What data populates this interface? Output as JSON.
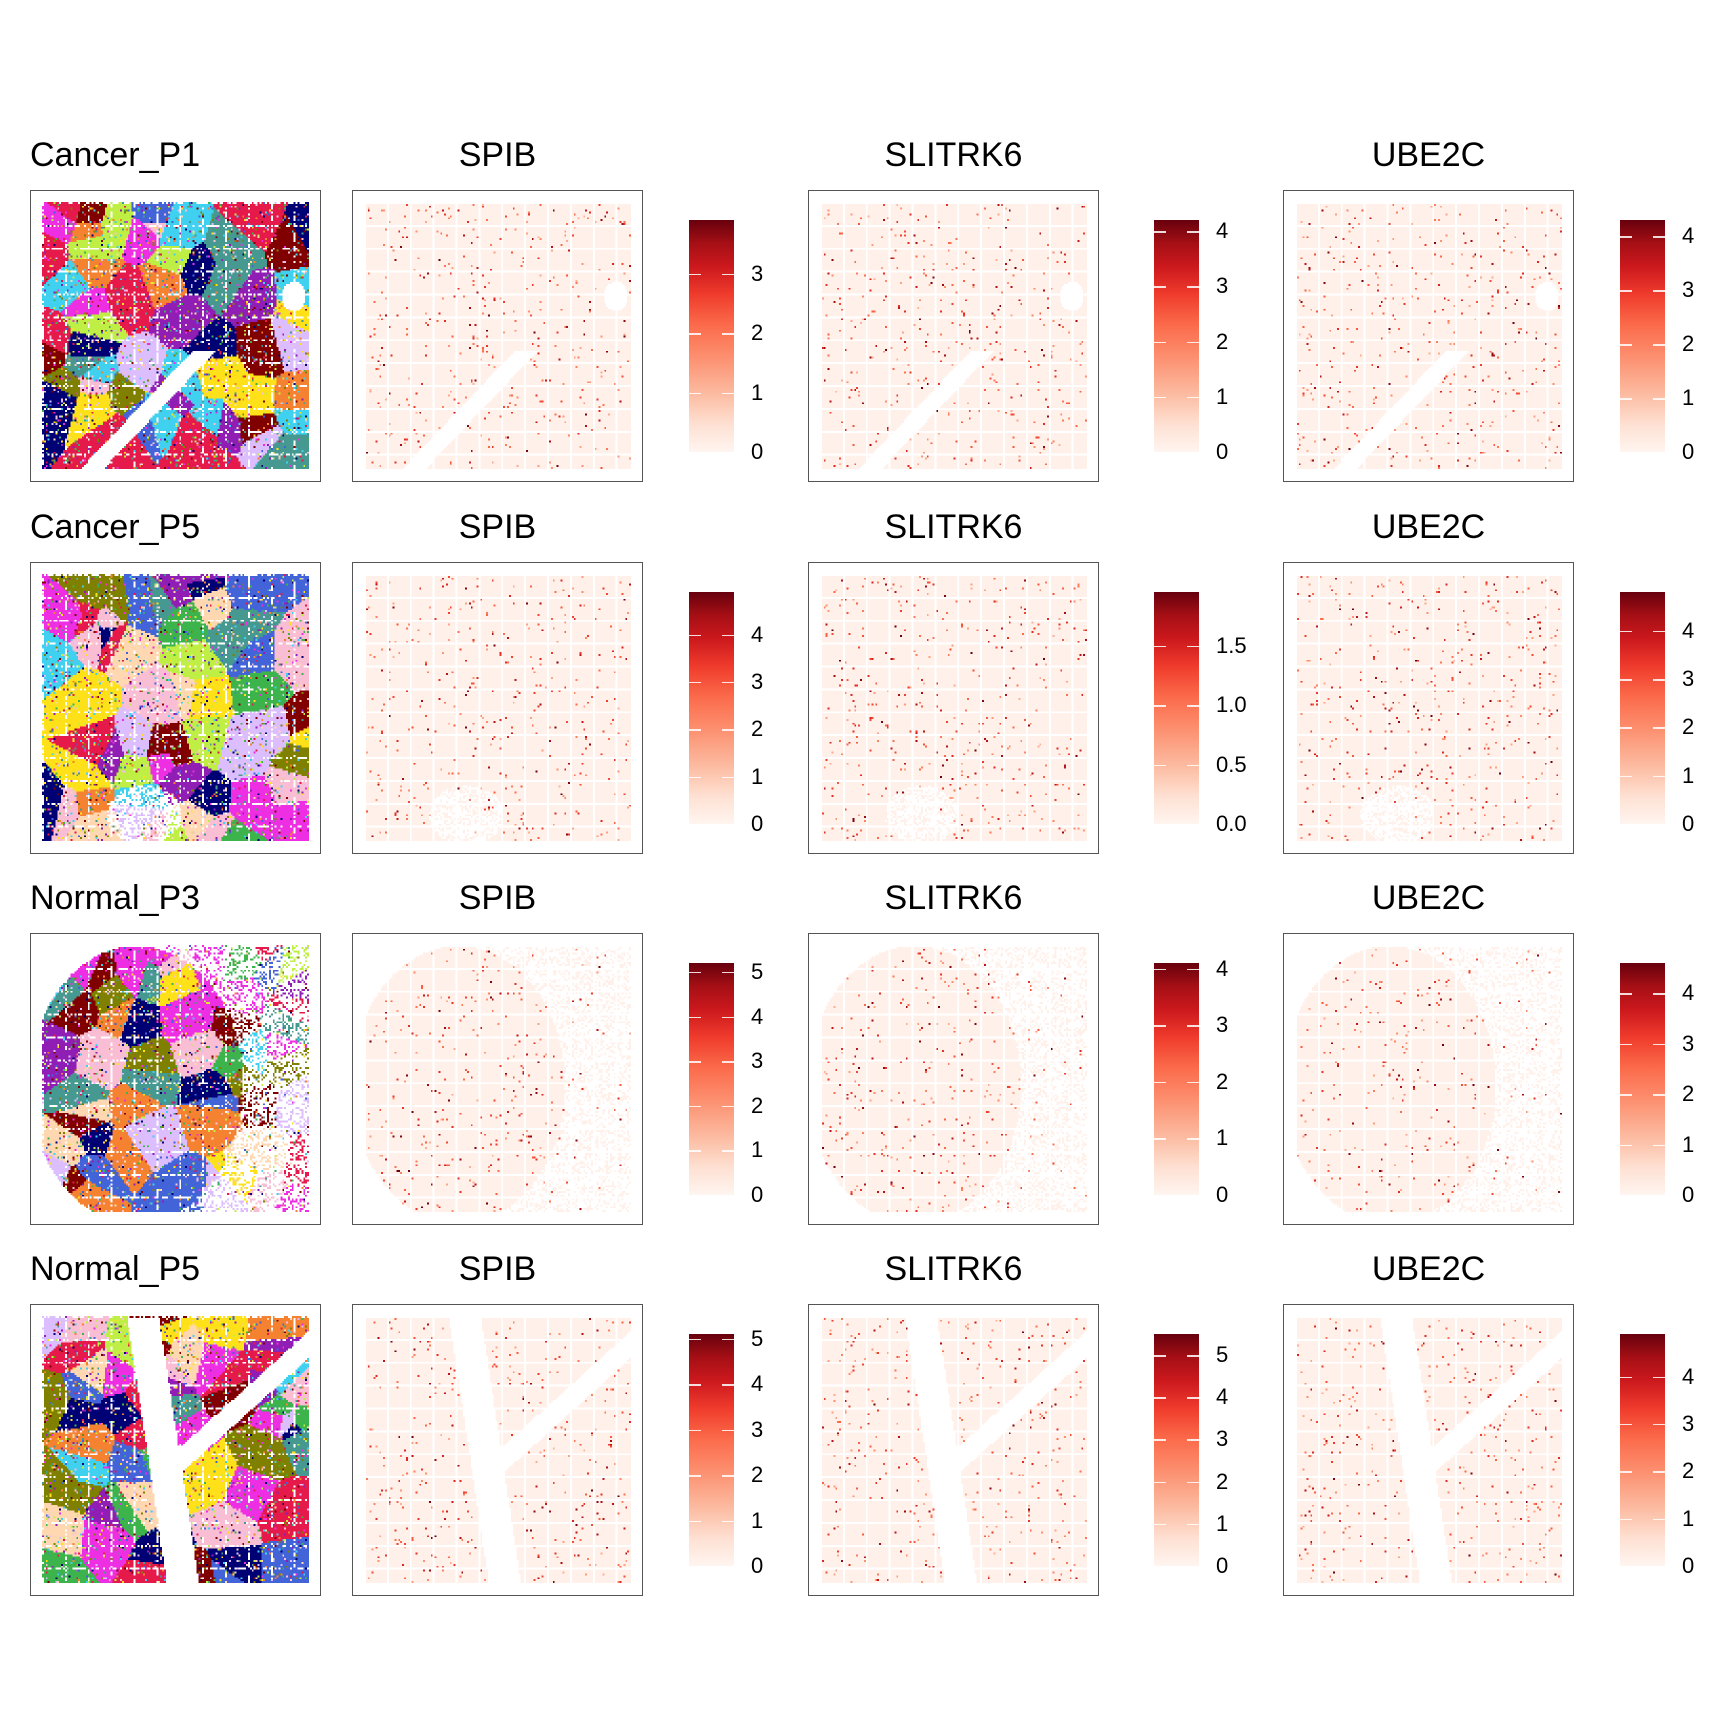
{
  "chart_data": {
    "type": "heatmap",
    "description_type": "spatial feature plots",
    "rows": [
      {
        "sample": "Cancer_P1",
        "panels": [
          {
            "gene": "SPIB",
            "colorbar_max": 3.9,
            "ticks": [
              "0",
              "1",
              "2",
              "3"
            ],
            "tick_values": [
              0,
              1,
              2,
              3
            ]
          },
          {
            "gene": "SLITRK6",
            "colorbar_max": 4.2,
            "ticks": [
              "0",
              "1",
              "2",
              "3",
              "4"
            ],
            "tick_values": [
              0,
              1,
              2,
              3,
              4
            ]
          },
          {
            "gene": "UBE2C",
            "colorbar_max": 4.3,
            "ticks": [
              "0",
              "1",
              "2",
              "3",
              "4"
            ],
            "tick_values": [
              0,
              1,
              2,
              3,
              4
            ]
          }
        ]
      },
      {
        "sample": "Cancer_P5",
        "panels": [
          {
            "gene": "SPIB",
            "colorbar_max": 4.9,
            "ticks": [
              "0",
              "1",
              "2",
              "3",
              "4"
            ],
            "tick_values": [
              0,
              1,
              2,
              3,
              4
            ]
          },
          {
            "gene": "SLITRK6",
            "colorbar_max": 1.95,
            "ticks": [
              "0.0",
              "0.5",
              "1.0",
              "1.5"
            ],
            "tick_values": [
              0,
              0.5,
              1.0,
              1.5
            ]
          },
          {
            "gene": "UBE2C",
            "colorbar_max": 4.8,
            "ticks": [
              "0",
              "1",
              "2",
              "3",
              "4"
            ],
            "tick_values": [
              0,
              1,
              2,
              3,
              4
            ]
          }
        ]
      },
      {
        "sample": "Normal_P3",
        "panels": [
          {
            "gene": "SPIB",
            "colorbar_max": 5.2,
            "ticks": [
              "0",
              "1",
              "2",
              "3",
              "4",
              "5"
            ],
            "tick_values": [
              0,
              1,
              2,
              3,
              4,
              5
            ]
          },
          {
            "gene": "SLITRK6",
            "colorbar_max": 4.1,
            "ticks": [
              "0",
              "1",
              "2",
              "3",
              "4"
            ],
            "tick_values": [
              0,
              1,
              2,
              3,
              4
            ]
          },
          {
            "gene": "UBE2C",
            "colorbar_max": 4.6,
            "ticks": [
              "0",
              "1",
              "2",
              "3",
              "4"
            ],
            "tick_values": [
              0,
              1,
              2,
              3,
              4
            ]
          }
        ]
      },
      {
        "sample": "Normal_P5",
        "panels": [
          {
            "gene": "SPIB",
            "colorbar_max": 5.1,
            "ticks": [
              "0",
              "1",
              "2",
              "3",
              "4",
              "5"
            ],
            "tick_values": [
              0,
              1,
              2,
              3,
              4,
              5
            ]
          },
          {
            "gene": "SLITRK6",
            "colorbar_max": 5.5,
            "ticks": [
              "0",
              "1",
              "2",
              "3",
              "4",
              "5"
            ],
            "tick_values": [
              0,
              1,
              2,
              3,
              4,
              5
            ]
          },
          {
            "gene": "UBE2C",
            "colorbar_max": 4.9,
            "ticks": [
              "0",
              "1",
              "2",
              "3",
              "4"
            ],
            "tick_values": [
              0,
              1,
              2,
              3,
              4
            ]
          }
        ]
      }
    ],
    "colormap": [
      "#fff5f0",
      "#fee0d2",
      "#fcbba1",
      "#fc9272",
      "#fb6a4a",
      "#ef3b2c",
      "#cb181d",
      "#a50f15",
      "#67000d"
    ],
    "cluster_colors": [
      "#ee2ee2",
      "#40d0f0",
      "#f58230",
      "#4363d8",
      "#fabed4",
      "#911eb4",
      "#bfef45",
      "#469990",
      "#e6194b",
      "#ffe119",
      "#800000",
      "#000075",
      "#ffd8b1",
      "#808000",
      "#3cb44b",
      "#dcbeff"
    ]
  }
}
